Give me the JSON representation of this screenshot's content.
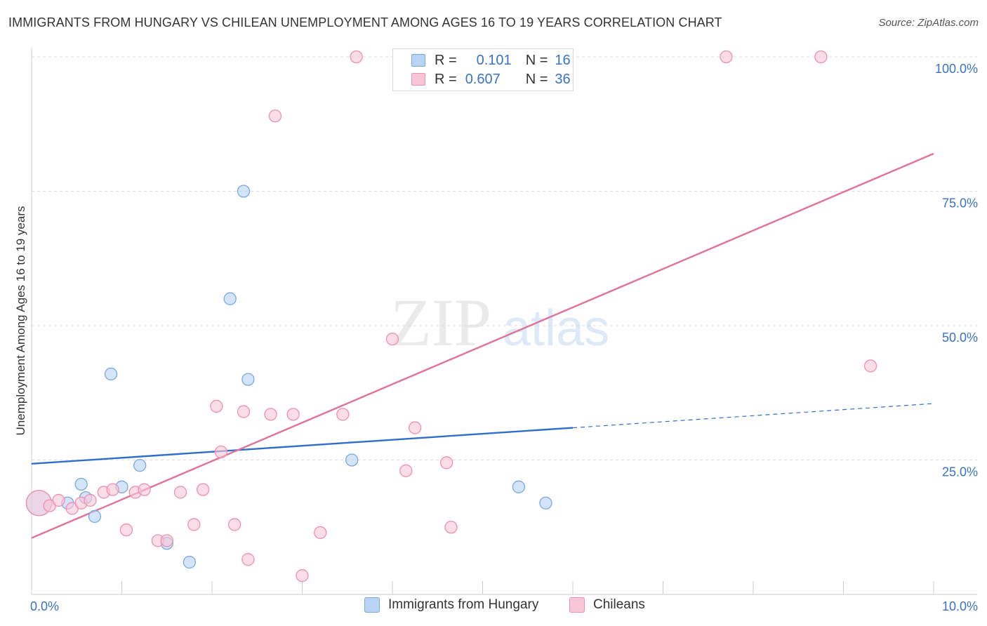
{
  "colors": {
    "hungary_fill": "#b9d3f5",
    "hungary_stroke": "#7aa7e0",
    "hungary_line": "#2f6fcc",
    "chilean_fill": "#f9c6d6",
    "chilean_stroke": "#ee8fae",
    "chilean_line": "#e0729a",
    "axis_value": "#3a72c4",
    "grid": "#dddddd"
  },
  "legend": {
    "hungary": {
      "r_label": "R =",
      "r_value": "0.101",
      "n_label": "N =",
      "n_value": "16"
    },
    "chilean": {
      "r_label": "R =",
      "r_value": "0.607",
      "n_label": "N =",
      "n_value": "36"
    }
  },
  "chart_data": {
    "type": "scatter",
    "title": "IMMIGRANTS FROM HUNGARY VS CHILEAN UNEMPLOYMENT AMONG AGES 16 TO 19 YEARS CORRELATION CHART",
    "source": "Source: ZipAtlas.com",
    "xlabel": "",
    "ylabel": "Unemployment Among Ages 16 to 19 years",
    "watermark": {
      "zip": "ZIP",
      "atlas": "atlas"
    },
    "xlim": [
      0,
      10
    ],
    "ylim": [
      0,
      100
    ],
    "x_tick_labels": [
      {
        "value": 0,
        "label": "0.0%"
      },
      {
        "value": 10,
        "label": "10.0%"
      }
    ],
    "y_tick_labels": [
      {
        "value": 25,
        "label": "25.0%"
      },
      {
        "value": 50,
        "label": "50.0%"
      },
      {
        "value": 75,
        "label": "75.0%"
      },
      {
        "value": 100,
        "label": "100.0%"
      }
    ],
    "y_grid": [
      25,
      50,
      75,
      100
    ],
    "x_minor_ticks": [
      0,
      1,
      2,
      3,
      4,
      5,
      6,
      7,
      8,
      9,
      10
    ],
    "series": [
      {
        "name": "Immigrants from Hungary",
        "key": "hungary",
        "points": [
          [
            0.05,
            17
          ],
          [
            0.4,
            17
          ],
          [
            0.55,
            20.5
          ],
          [
            0.6,
            18
          ],
          [
            0.7,
            14.5
          ],
          [
            0.88,
            41
          ],
          [
            1.0,
            20
          ],
          [
            1.2,
            24
          ],
          [
            1.5,
            9.5
          ],
          [
            1.75,
            6
          ],
          [
            2.35,
            75
          ],
          [
            2.2,
            55
          ],
          [
            2.4,
            40
          ],
          [
            3.55,
            25
          ],
          [
            5.4,
            20
          ],
          [
            5.7,
            17
          ]
        ],
        "trend": {
          "x0": 0,
          "y0": 24.3,
          "x1": 6.0,
          "y1": 31,
          "dashed_to_x": 10,
          "dashed_to_y": 35.5
        }
      },
      {
        "name": "Chileans",
        "key": "chilean",
        "points": [
          [
            0.05,
            17
          ],
          [
            0.2,
            16.5
          ],
          [
            0.3,
            17.5
          ],
          [
            0.45,
            16
          ],
          [
            0.55,
            17
          ],
          [
            0.65,
            17.5
          ],
          [
            0.8,
            19
          ],
          [
            0.9,
            19.5
          ],
          [
            1.05,
            12
          ],
          [
            1.15,
            19
          ],
          [
            1.25,
            19.5
          ],
          [
            1.4,
            10
          ],
          [
            1.5,
            10
          ],
          [
            1.65,
            19
          ],
          [
            1.8,
            13
          ],
          [
            1.9,
            19.5
          ],
          [
            2.05,
            35
          ],
          [
            2.1,
            26.5
          ],
          [
            2.25,
            13
          ],
          [
            2.35,
            34
          ],
          [
            2.4,
            6.5
          ],
          [
            2.65,
            33.5
          ],
          [
            2.7,
            89
          ],
          [
            2.9,
            33.5
          ],
          [
            3.0,
            3.5
          ],
          [
            3.2,
            11.5
          ],
          [
            3.45,
            33.5
          ],
          [
            3.6,
            100
          ],
          [
            4.0,
            47.5
          ],
          [
            4.15,
            23
          ],
          [
            4.25,
            31
          ],
          [
            4.6,
            24.5
          ],
          [
            4.65,
            12.5
          ],
          [
            7.7,
            100
          ],
          [
            8.75,
            100
          ],
          [
            9.3,
            42.5
          ]
        ],
        "trend": {
          "x0": 0,
          "y0": 10.5,
          "x1": 10,
          "y1": 82
        }
      }
    ]
  }
}
